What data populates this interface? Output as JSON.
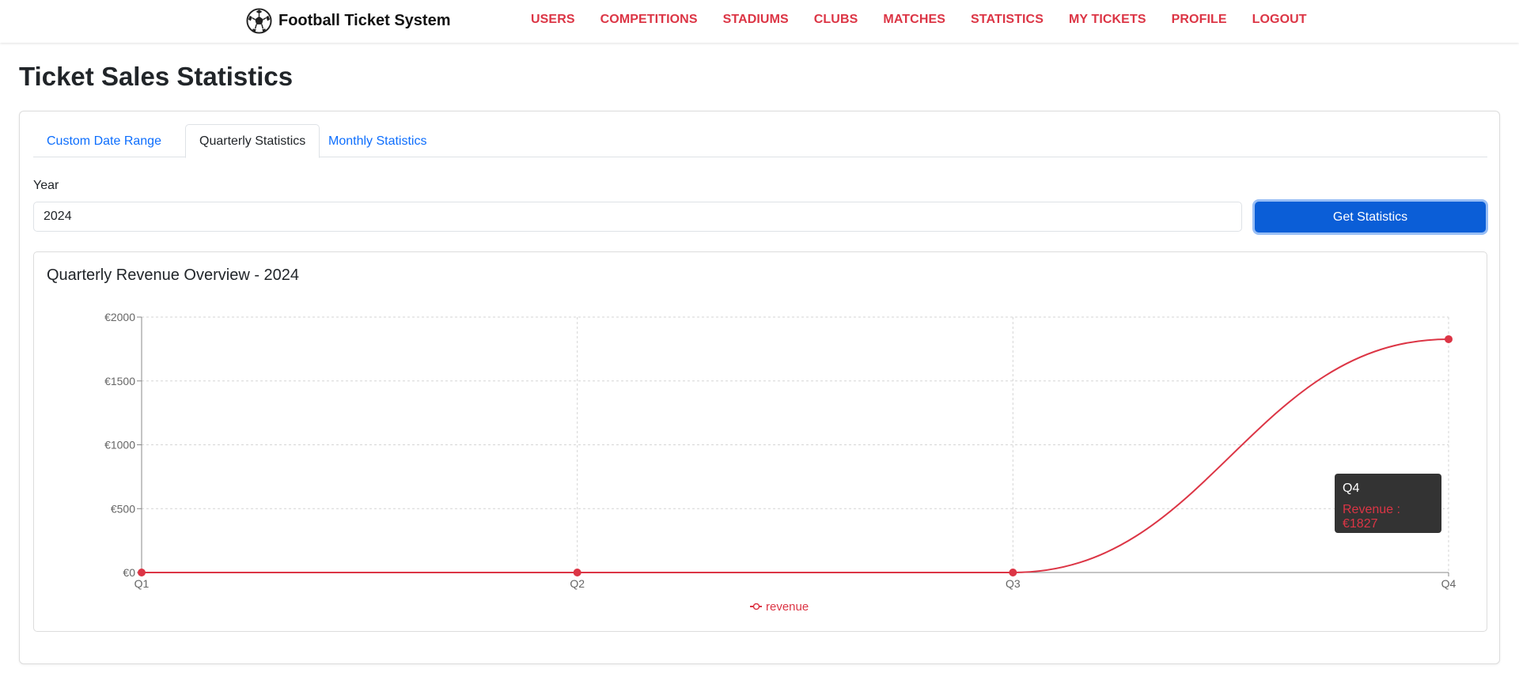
{
  "brand": {
    "name": "Football Ticket System",
    "icon": "soccer-ball-icon"
  },
  "nav": [
    {
      "id": "users",
      "label": "USERS"
    },
    {
      "id": "competitions",
      "label": "COMPETITIONS"
    },
    {
      "id": "stadiums",
      "label": "STADIUMS"
    },
    {
      "id": "clubs",
      "label": "CLUBS"
    },
    {
      "id": "matches",
      "label": "MATCHES"
    },
    {
      "id": "statistics",
      "label": "STATISTICS"
    },
    {
      "id": "my-tickets",
      "label": "MY TICKETS"
    },
    {
      "id": "profile",
      "label": "PROFILE"
    },
    {
      "id": "logout",
      "label": "LOGOUT"
    }
  ],
  "page": {
    "title": "Ticket Sales Statistics"
  },
  "tabs": [
    {
      "label": "Custom Date Range",
      "active": false
    },
    {
      "label": "Quarterly Statistics",
      "active": true
    },
    {
      "label": "Monthly Statistics",
      "active": false
    }
  ],
  "form": {
    "year_label": "Year",
    "year_value": "2024",
    "submit_label": "Get Statistics"
  },
  "chart_data": {
    "type": "line",
    "title": "Quarterly Revenue Overview - 2024",
    "categories": [
      "Q1",
      "Q2",
      "Q3",
      "Q4"
    ],
    "series": [
      {
        "name": "revenue",
        "values": [
          0,
          0,
          0,
          1827
        ],
        "color": "#dc3545"
      }
    ],
    "ylim": [
      0,
      2000
    ],
    "yticks": [
      0,
      500,
      1000,
      1500,
      2000
    ],
    "ytick_prefix": "€",
    "grid": true,
    "legend": "bottom-center",
    "tooltip": {
      "label": "Q4",
      "text": "Revenue : €1827"
    }
  },
  "colors": {
    "accent": "#dc3545",
    "primary": "#0b5ed7",
    "link": "#0d6efd"
  }
}
